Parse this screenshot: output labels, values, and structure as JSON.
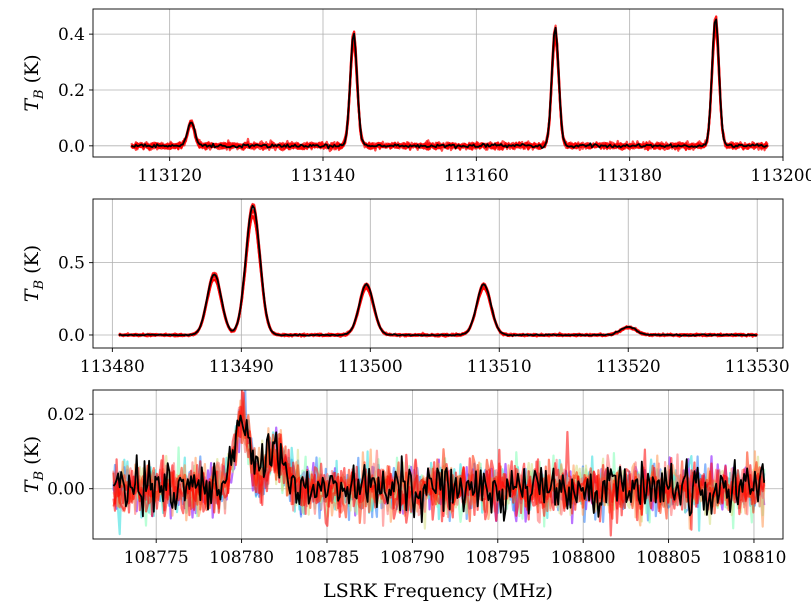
{
  "chart_data": [
    {
      "type": "line",
      "ylabel": "T_B (K)",
      "ylabel_main": "T",
      "ylabel_sub": "B",
      "ylabel_unit": " (K)",
      "xlabel": "",
      "xlim": [
        113110,
        113200
      ],
      "ylim": [
        -0.04,
        0.49
      ],
      "xticks": [
        113120,
        113140,
        113160,
        113180,
        113200
      ],
      "yticks": [
        0.0,
        0.2,
        0.4
      ],
      "ytick_decimals": 1,
      "grid": true,
      "x_range": [
        113115,
        113198
      ],
      "noise": 0.006,
      "peaks": [
        {
          "x": 113122.8,
          "height": 0.085,
          "width": 0.45
        },
        {
          "x": 113144.0,
          "height": 0.4,
          "width": 0.45
        },
        {
          "x": 113170.3,
          "height": 0.42,
          "width": 0.45
        },
        {
          "x": 113191.2,
          "height": 0.46,
          "width": 0.45
        }
      ],
      "series": [
        {
          "role": "samples",
          "color": "#ff0000",
          "count": 8
        },
        {
          "role": "observed",
          "color": "#000000"
        }
      ]
    },
    {
      "type": "line",
      "ylabel": "T_B (K)",
      "ylabel_main": "T",
      "ylabel_sub": "B",
      "ylabel_unit": " (K)",
      "xlabel": "",
      "xlim": [
        113478.5,
        113532
      ],
      "ylim": [
        -0.09,
        0.94
      ],
      "xticks": [
        113480,
        113490,
        113500,
        113510,
        113520,
        113530
      ],
      "yticks": [
        0.0,
        0.5
      ],
      "ytick_decimals": 1,
      "grid": true,
      "x_range": [
        113480.5,
        113530
      ],
      "noise": 0.004,
      "peaks": [
        {
          "x": 113487.9,
          "height": 0.42,
          "width": 0.55
        },
        {
          "x": 113490.9,
          "height": 0.89,
          "width": 0.55
        },
        {
          "x": 113499.7,
          "height": 0.35,
          "width": 0.55
        },
        {
          "x": 113508.8,
          "height": 0.35,
          "width": 0.55
        },
        {
          "x": 113520.0,
          "height": 0.055,
          "width": 0.6
        }
      ],
      "series": [
        {
          "role": "samples",
          "color": "#ff0000",
          "count": 8
        },
        {
          "role": "observed",
          "color": "#000000"
        }
      ]
    },
    {
      "type": "line",
      "ylabel": "T_B (K)",
      "ylabel_main": "T",
      "ylabel_sub": "B",
      "ylabel_unit": " (K)",
      "xlabel": "LSRK Frequency (MHz)",
      "xlim": [
        108771.3,
        108811.7
      ],
      "ylim": [
        -0.0135,
        0.0265
      ],
      "xticks": [
        108775,
        108780,
        108785,
        108790,
        108795,
        108800,
        108805,
        108810
      ],
      "yticks": [
        0.0,
        0.02
      ],
      "ytick_decimals": 2,
      "grid": true,
      "x_range": [
        108772.5,
        108810.6
      ],
      "noise": 0.0035,
      "peaks": [
        {
          "x": 108780.0,
          "height": 0.018,
          "width": 0.45
        },
        {
          "x": 108782.0,
          "height": 0.01,
          "width": 0.5
        }
      ],
      "sample_colors": [
        "#7f00ff",
        "#2c7ef7",
        "#2adddd",
        "#80ffb4",
        "#d4dd80",
        "#ff964f",
        "#ff6a6a",
        "#ff0000",
        "#ff2a00",
        "#ff0000"
      ],
      "series": [
        {
          "role": "samples",
          "color": "#ff0000",
          "count": 10
        },
        {
          "role": "observed",
          "color": "#000000"
        }
      ]
    }
  ]
}
